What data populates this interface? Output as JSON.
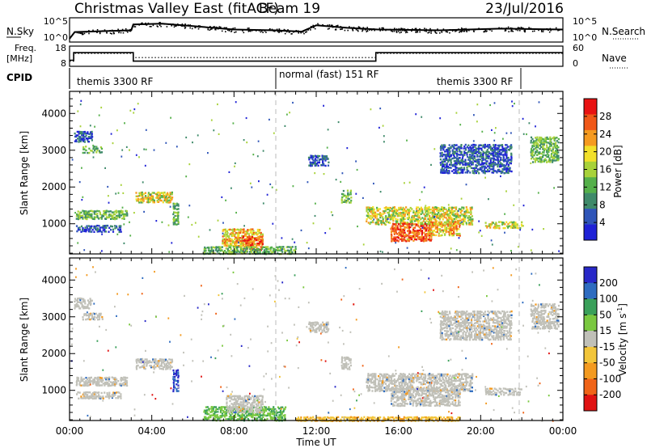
{
  "header": {
    "title": "Christmas Valley East (fitACF)",
    "beam": "Beam 19",
    "date": "23/Jul/2016"
  },
  "top_panels": {
    "nsky_label": "N.Sky",
    "nsky_ticks": [
      "10^5",
      "10^0"
    ],
    "nsearch_label": "N.Search",
    "nsearch_ticks": [
      "10^5",
      "10^0"
    ],
    "freq_label": "Freq.",
    "freq_unit": "[MHz]",
    "freq_ticks": [
      "18",
      "8"
    ],
    "nave_label": "Nave",
    "nave_ticks": [
      "60",
      "0"
    ],
    "freq_steps": [
      {
        "t": 0.0,
        "v": 10.5
      },
      {
        "t": 0.2,
        "v": 14.8
      },
      {
        "t": 3.1,
        "v": 10.0
      },
      {
        "t": 14.9,
        "v": 14.8
      },
      {
        "t": 24.0,
        "v": 14.8
      }
    ],
    "nave_steps": [
      {
        "t": 0.0,
        "v": 12
      },
      {
        "t": 0.2,
        "v": 38
      },
      {
        "t": 3.1,
        "v": 24
      },
      {
        "t": 14.9,
        "v": 38
      },
      {
        "t": 24.0,
        "v": 38
      }
    ],
    "nsky_profile": [
      {
        "t": 0.0,
        "v": 0.4
      },
      {
        "t": 0.25,
        "v": 2.0
      },
      {
        "t": 3.0,
        "v": 2.4
      },
      {
        "t": 3.1,
        "v": 3.8
      },
      {
        "t": 4.5,
        "v": 4.0
      },
      {
        "t": 6.0,
        "v": 3.4
      },
      {
        "t": 8.0,
        "v": 2.6
      },
      {
        "t": 10.0,
        "v": 2.4
      },
      {
        "t": 11.3,
        "v": 2.1
      },
      {
        "t": 12.0,
        "v": 3.6
      },
      {
        "t": 13.5,
        "v": 3.0
      },
      {
        "t": 15.0,
        "v": 2.6
      },
      {
        "t": 18.0,
        "v": 2.4
      },
      {
        "t": 21.0,
        "v": 2.8
      },
      {
        "t": 24.0,
        "v": 2.6
      }
    ]
  },
  "cpid": {
    "label": "CPID",
    "segments": [
      {
        "start": 0.0,
        "end": 10.0,
        "text": "themis 3300 RF"
      },
      {
        "start": 10.0,
        "end": 22.0,
        "text": "normal (fast) 151 RF"
      },
      {
        "start": 22.0,
        "end": 24.0,
        "text": "themis 3300 RF"
      }
    ]
  },
  "chart_data": [
    {
      "type": "heatmap",
      "name": "Power",
      "ylabel": "Slant Range [km]",
      "xlabel": "Time UT",
      "xlim": [
        0,
        24
      ],
      "ylim": [
        180,
        4600
      ],
      "y_ticks": [
        "4000",
        "3000",
        "2000",
        "1000"
      ],
      "colorbar": {
        "label": "Power [dB]",
        "ticks": [
          "28",
          "24",
          "20",
          "16",
          "12",
          "8",
          "4"
        ],
        "range": [
          0,
          32
        ]
      },
      "patches": [
        {
          "t0": 0.2,
          "t1": 1.1,
          "r0": 3250,
          "r1": 3550,
          "level": "low"
        },
        {
          "t0": 0.6,
          "t1": 1.6,
          "r0": 2950,
          "r1": 3150,
          "level": "mid"
        },
        {
          "t0": 0.3,
          "t1": 2.8,
          "r0": 1150,
          "r1": 1400,
          "level": "mid"
        },
        {
          "t0": 0.3,
          "t1": 2.5,
          "r0": 800,
          "r1": 1000,
          "level": "low"
        },
        {
          "t0": 3.2,
          "t1": 5.0,
          "r0": 1600,
          "r1": 1900,
          "level": "high"
        },
        {
          "t0": 5.0,
          "t1": 5.3,
          "r0": 1000,
          "r1": 1600,
          "level": "mid"
        },
        {
          "t0": 7.4,
          "t1": 9.4,
          "r0": 420,
          "r1": 900,
          "level": "strong"
        },
        {
          "t0": 8.4,
          "t1": 9.4,
          "r0": 300,
          "r1": 700,
          "level": "max"
        },
        {
          "t0": 6.5,
          "t1": 11.0,
          "r0": 200,
          "r1": 420,
          "level": "mid"
        },
        {
          "t0": 11.6,
          "t1": 12.6,
          "r0": 2600,
          "r1": 2900,
          "level": "low"
        },
        {
          "t0": 13.2,
          "t1": 13.7,
          "r0": 1600,
          "r1": 1950,
          "level": "mid"
        },
        {
          "t0": 14.4,
          "t1": 19.6,
          "r0": 1000,
          "r1": 1500,
          "level": "high"
        },
        {
          "t0": 15.6,
          "t1": 17.6,
          "r0": 550,
          "r1": 1050,
          "level": "max"
        },
        {
          "t0": 17.4,
          "t1": 19.0,
          "r0": 700,
          "r1": 1100,
          "level": "strong"
        },
        {
          "t0": 20.2,
          "t1": 22.0,
          "r0": 900,
          "r1": 1100,
          "level": "high"
        },
        {
          "t0": 18.0,
          "t1": 21.5,
          "r0": 2400,
          "r1": 3200,
          "level": "low"
        },
        {
          "t0": 22.4,
          "t1": 23.8,
          "r0": 2700,
          "r1": 3400,
          "level": "mid"
        }
      ]
    },
    {
      "type": "heatmap",
      "name": "Velocity",
      "ylabel": "Slant Range [km]",
      "xlabel": "Time UT",
      "xlim": [
        0,
        24
      ],
      "ylim": [
        180,
        4600
      ],
      "y_ticks": [
        "4000",
        "3000",
        "2000",
        "1000"
      ],
      "colorbar": {
        "label": "Velocity [m s",
        "label_exp": "-1",
        "label_end": "]",
        "ticks": [
          "200",
          "100",
          "50",
          "15",
          "-15",
          "-50",
          "-100",
          "-200"
        ],
        "range": [
          -250,
          250
        ]
      },
      "patches": [
        {
          "t0": 0.2,
          "t1": 1.1,
          "r0": 3250,
          "r1": 3550,
          "level": "ground"
        },
        {
          "t0": 0.6,
          "t1": 1.6,
          "r0": 2950,
          "r1": 3150,
          "level": "ground"
        },
        {
          "t0": 0.3,
          "t1": 2.8,
          "r0": 1150,
          "r1": 1400,
          "level": "ground"
        },
        {
          "t0": 0.3,
          "t1": 2.5,
          "r0": 800,
          "r1": 1000,
          "level": "ground"
        },
        {
          "t0": 3.2,
          "t1": 5.0,
          "r0": 1600,
          "r1": 1900,
          "level": "ground"
        },
        {
          "t0": 5.0,
          "t1": 5.3,
          "r0": 1000,
          "r1": 1600,
          "level": "away"
        },
        {
          "t0": 6.5,
          "t1": 10.5,
          "r0": 200,
          "r1": 600,
          "level": "slow_toward"
        },
        {
          "t0": 7.6,
          "t1": 9.4,
          "r0": 420,
          "r1": 900,
          "level": "ground"
        },
        {
          "t0": 11.0,
          "t1": 19.0,
          "r0": 190,
          "r1": 320,
          "level": "slow_away"
        },
        {
          "t0": 11.6,
          "t1": 12.6,
          "r0": 2600,
          "r1": 2900,
          "level": "ground"
        },
        {
          "t0": 13.2,
          "t1": 13.7,
          "r0": 1600,
          "r1": 1950,
          "level": "ground"
        },
        {
          "t0": 14.4,
          "t1": 19.6,
          "r0": 1000,
          "r1": 1500,
          "level": "ground"
        },
        {
          "t0": 15.6,
          "t1": 19.0,
          "r0": 600,
          "r1": 1100,
          "level": "ground"
        },
        {
          "t0": 20.2,
          "t1": 22.0,
          "r0": 900,
          "r1": 1100,
          "level": "ground"
        },
        {
          "t0": 18.0,
          "t1": 21.5,
          "r0": 2400,
          "r1": 3200,
          "level": "ground"
        },
        {
          "t0": 22.4,
          "t1": 23.8,
          "r0": 2700,
          "r1": 3400,
          "level": "ground"
        }
      ]
    }
  ],
  "x_axis": {
    "ticks": [
      "00:00",
      "04:00",
      "08:00",
      "12:00",
      "16:00",
      "20:00",
      "00:00"
    ],
    "label": "Time UT"
  },
  "colors": {
    "power": [
      "#1f22d6",
      "#2f55b8",
      "#3f8a6a",
      "#55b04a",
      "#a8d23a",
      "#f2e02a",
      "#f59a20",
      "#f05818",
      "#e81212"
    ],
    "velocity_pos": [
      "#2828c8",
      "#2e6cc0",
      "#3aa05a",
      "#7ac840"
    ],
    "velocity_neg": [
      "#f2c53a",
      "#f39a20",
      "#f06418",
      "#e01212"
    ],
    "ground": "#c0c0b8"
  }
}
